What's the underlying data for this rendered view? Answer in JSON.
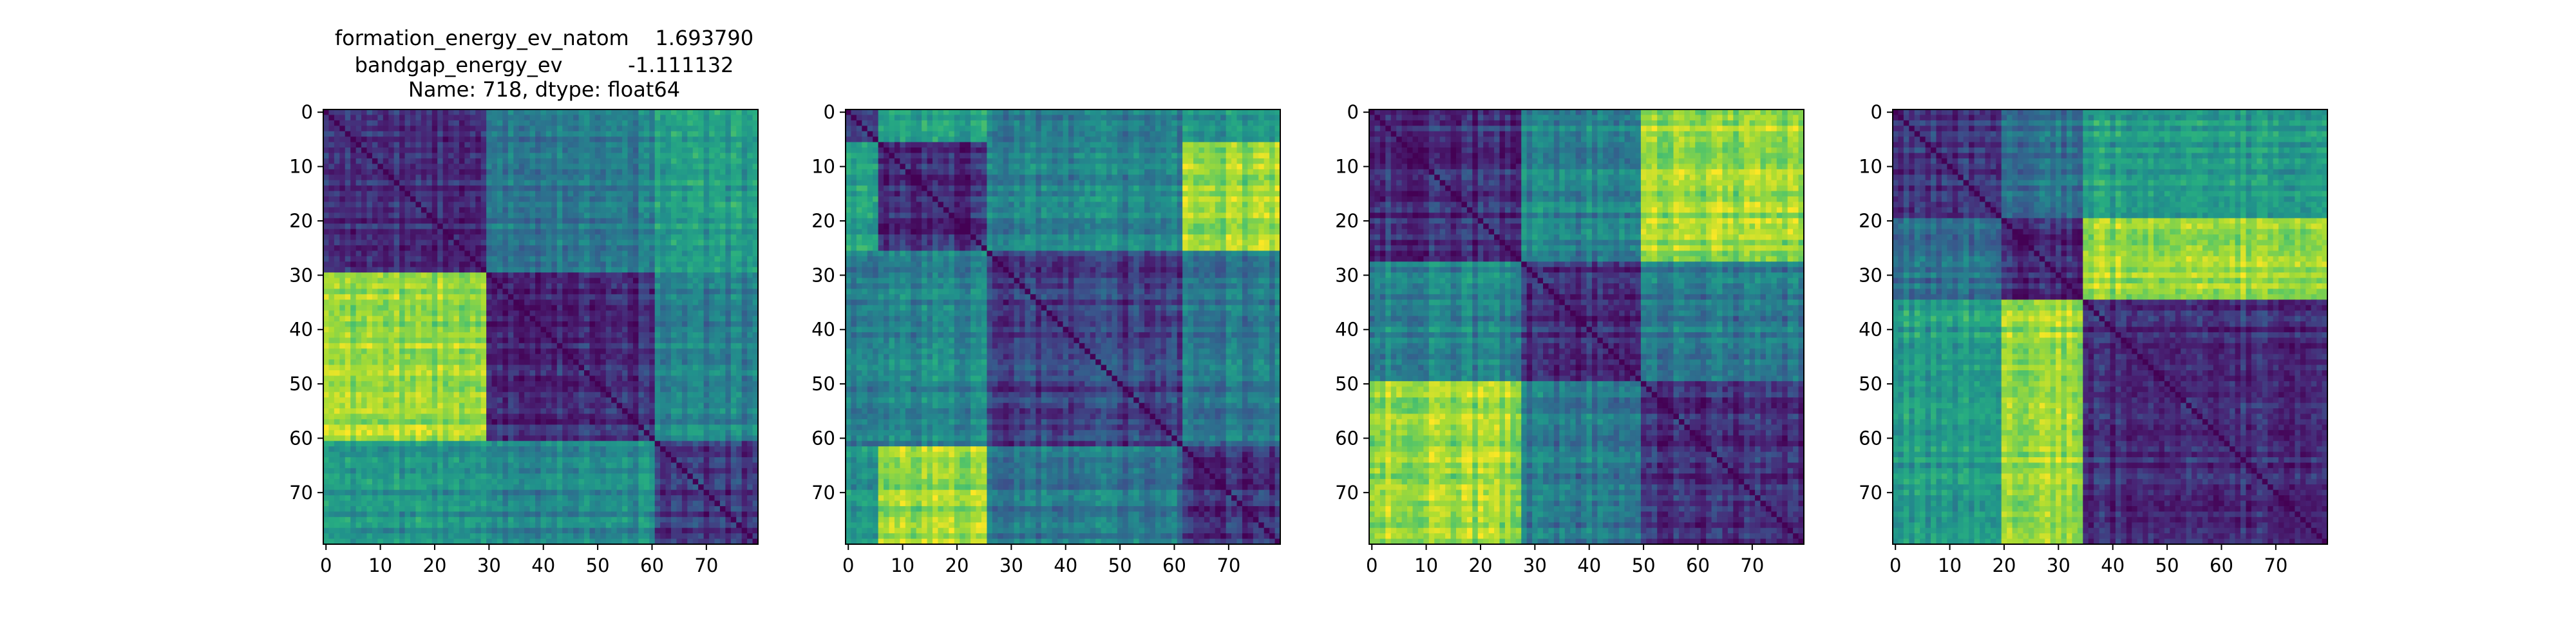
{
  "figure": {
    "title_lines": [
      "formation_energy_ev_natom    1.693790",
      "bandgap_energy_ev          -1.111132",
      "Name: 718, dtype: float64"
    ]
  },
  "chart_data": [
    {
      "type": "heatmap",
      "title": "",
      "xlabel": "",
      "ylabel": "",
      "colormap": "viridis",
      "size": 80,
      "xlim": [
        0,
        80
      ],
      "ylim": [
        80,
        0
      ],
      "x_ticks": [
        0,
        10,
        20,
        30,
        40,
        50,
        60,
        70
      ],
      "y_ticks": [
        0,
        10,
        20,
        30,
        40,
        50,
        60,
        70
      ],
      "cluster_boundaries": [
        0,
        30,
        61,
        80
      ],
      "block_values": [
        [
          0.12,
          0.4,
          0.55
        ],
        [
          0.85,
          0.14,
          0.45
        ],
        [
          0.52,
          0.48,
          0.18
        ]
      ],
      "diagonal_value": 0.0,
      "description_hint": "pairwise distance matrix with 3 clusters"
    },
    {
      "type": "heatmap",
      "title": "",
      "xlabel": "",
      "ylabel": "",
      "colormap": "viridis",
      "size": 80,
      "xlim": [
        0,
        80
      ],
      "ylim": [
        80,
        0
      ],
      "x_ticks": [
        0,
        10,
        20,
        30,
        40,
        50,
        60,
        70
      ],
      "y_ticks": [
        0,
        10,
        20,
        30,
        40,
        50,
        60,
        70
      ],
      "cluster_boundaries": [
        0,
        6,
        26,
        62,
        80
      ],
      "block_values": [
        [
          0.15,
          0.55,
          0.4,
          0.5
        ],
        [
          0.55,
          0.12,
          0.45,
          0.85
        ],
        [
          0.4,
          0.45,
          0.2,
          0.4
        ],
        [
          0.5,
          0.85,
          0.4,
          0.15
        ]
      ],
      "diagonal_value": 0.0
    },
    {
      "type": "heatmap",
      "title": "",
      "xlabel": "",
      "ylabel": "",
      "colormap": "viridis",
      "size": 80,
      "xlim": [
        0,
        80
      ],
      "ylim": [
        80,
        0
      ],
      "x_ticks": [
        0,
        10,
        20,
        30,
        40,
        50,
        60,
        70
      ],
      "y_ticks": [
        0,
        10,
        20,
        30,
        40,
        50,
        60,
        70
      ],
      "cluster_boundaries": [
        0,
        28,
        50,
        80
      ],
      "block_values": [
        [
          0.15,
          0.45,
          0.6
        ],
        [
          0.45,
          0.14,
          0.4
        ],
        [
          0.6,
          0.4,
          0.13
        ]
      ],
      "off_block_hotspots": [
        [
          0,
          2,
          0.85
        ],
        [
          2,
          0,
          0.85
        ]
      ],
      "diagonal_value": 0.0
    },
    {
      "type": "heatmap",
      "title": "",
      "xlabel": "",
      "ylabel": "",
      "colormap": "viridis",
      "size": 80,
      "xlim": [
        0,
        80
      ],
      "ylim": [
        80,
        0
      ],
      "x_ticks": [
        0,
        10,
        20,
        30,
        40,
        50,
        60,
        70
      ],
      "y_ticks": [
        0,
        10,
        20,
        30,
        40,
        50,
        60,
        70
      ],
      "cluster_boundaries": [
        0,
        20,
        35,
        80
      ],
      "block_values": [
        [
          0.15,
          0.35,
          0.55
        ],
        [
          0.35,
          0.12,
          0.85
        ],
        [
          0.55,
          0.85,
          0.15
        ]
      ],
      "diagonal_value": 0.0
    }
  ]
}
